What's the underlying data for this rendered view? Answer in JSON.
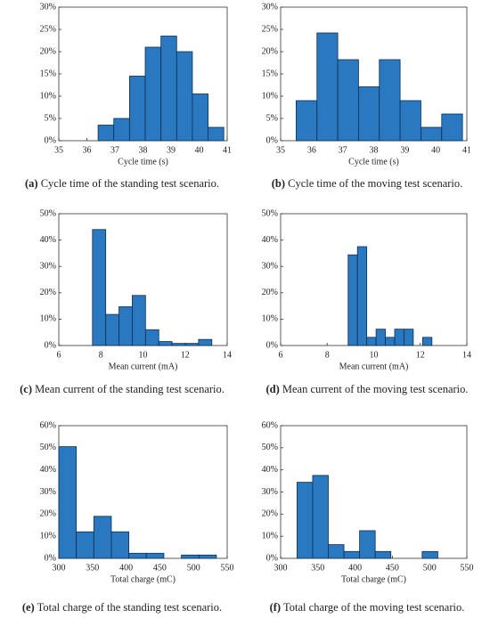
{
  "chart_data": [
    {
      "type": "histogram",
      "caption_label": "(a)",
      "caption": "Cycle time of the standing test scenario.",
      "x_label": "Cycle time (s)",
      "bins": [
        36.4,
        36.96,
        37.52,
        38.08,
        38.64,
        39.2,
        39.76,
        40.32,
        40.88
      ],
      "counts": [
        3.5,
        5,
        14.5,
        21,
        23.5,
        20,
        10.5,
        3
      ],
      "xlim": [
        35,
        41
      ],
      "xticks": [
        35,
        36,
        37,
        38,
        39,
        40,
        41
      ],
      "ylim": [
        0,
        30
      ],
      "yticks": [
        {
          "value": 0,
          "label": "0%"
        },
        {
          "value": 5,
          "label": "5%"
        },
        {
          "value": 10,
          "label": "10%"
        },
        {
          "value": 15,
          "label": "15%"
        },
        {
          "value": 20,
          "label": "20%"
        },
        {
          "value": 25,
          "label": "25%"
        },
        {
          "value": 30,
          "label": "30%"
        }
      ],
      "color": "#2a78c0"
    },
    {
      "type": "histogram",
      "caption_label": "(b)",
      "caption": "Cycle time of the moving test scenario.",
      "x_label": "Cycle time (s)",
      "bins": [
        35.5,
        36.17,
        36.84,
        37.51,
        38.18,
        38.85,
        39.52,
        40.19,
        40.86
      ],
      "counts": [
        9,
        24.2,
        18.2,
        12.1,
        18.2,
        9,
        3,
        6
      ],
      "xlim": [
        35,
        41
      ],
      "xticks": [
        35,
        36,
        37,
        38,
        39,
        40,
        41
      ],
      "ylim": [
        0,
        30
      ],
      "yticks": [
        {
          "value": 0,
          "label": "0%"
        },
        {
          "value": 5,
          "label": "5%"
        },
        {
          "value": 10,
          "label": "10%"
        },
        {
          "value": 15,
          "label": "15%"
        },
        {
          "value": 20,
          "label": "20%"
        },
        {
          "value": 25,
          "label": "25%"
        },
        {
          "value": 30,
          "label": "30%"
        }
      ],
      "color": "#2a78c0"
    },
    {
      "type": "histogram",
      "caption_label": "(c)",
      "caption": "Mean current of the standing test scenario.",
      "x_label": "Mean current (mA)",
      "bins": [
        7.6,
        8.23,
        8.86,
        9.49,
        10.12,
        10.75,
        11.38,
        12.01,
        12.64,
        13.27
      ],
      "counts": [
        44,
        11.8,
        14.7,
        19,
        6,
        1.5,
        0.8,
        0.8,
        2.3
      ],
      "xlim": [
        6,
        14
      ],
      "xticks": [
        6,
        8,
        10,
        12,
        14
      ],
      "ylim": [
        0,
        50
      ],
      "yticks": [
        {
          "value": 0,
          "label": "0%"
        },
        {
          "value": 10,
          "label": "10%"
        },
        {
          "value": 20,
          "label": "20%"
        },
        {
          "value": 30,
          "label": "30%"
        },
        {
          "value": 40,
          "label": "40%"
        },
        {
          "value": 50,
          "label": "50%"
        }
      ],
      "color": "#2a78c0"
    },
    {
      "type": "histogram",
      "caption_label": "(d)",
      "caption": "Mean current of the moving test scenario.",
      "x_label": "Mean current (mA)",
      "bins": [
        8.9,
        9.3,
        9.7,
        10.1,
        10.5,
        10.9,
        11.3,
        11.7,
        12.1,
        12.5
      ],
      "counts": [
        34.4,
        37.5,
        3.1,
        6.2,
        3.1,
        6.2,
        6.2,
        0,
        3.1
      ],
      "xlim": [
        6,
        14
      ],
      "xticks": [
        6,
        8,
        10,
        12,
        14
      ],
      "ylim": [
        0,
        50
      ],
      "yticks": [
        {
          "value": 0,
          "label": "0%"
        },
        {
          "value": 10,
          "label": "10%"
        },
        {
          "value": 20,
          "label": "20%"
        },
        {
          "value": 30,
          "label": "30%"
        },
        {
          "value": 40,
          "label": "40%"
        },
        {
          "value": 50,
          "label": "50%"
        }
      ],
      "color": "#2a78c0"
    },
    {
      "type": "histogram",
      "caption_label": "(e)",
      "caption": "Total charge of the standing test scenario.",
      "x_label": "Total charge (mC)",
      "bins": [
        300,
        326,
        352,
        378,
        404,
        430,
        456,
        482,
        508,
        534
      ],
      "counts": [
        50.5,
        12,
        19,
        12,
        2.3,
        2.3,
        0,
        1.5,
        1.5
      ],
      "xlim": [
        300,
        550
      ],
      "xticks": [
        300,
        350,
        400,
        450,
        500,
        550
      ],
      "ylim": [
        0,
        60
      ],
      "yticks": [
        {
          "value": 0,
          "label": "0%"
        },
        {
          "value": 10,
          "label": "10%"
        },
        {
          "value": 20,
          "label": "20%"
        },
        {
          "value": 30,
          "label": "30%"
        },
        {
          "value": 40,
          "label": "40%"
        },
        {
          "value": 50,
          "label": "50%"
        },
        {
          "value": 60,
          "label": "60%"
        }
      ],
      "color": "#2a78c0"
    },
    {
      "type": "histogram",
      "caption_label": "(f)",
      "caption": "Total charge of the moving test scenario.",
      "x_label": "Total charge (mC)",
      "bins": [
        322,
        343,
        364,
        385,
        406,
        427,
        448,
        469,
        490,
        511
      ],
      "counts": [
        34.4,
        37.5,
        6.2,
        3.1,
        12.5,
        3.1,
        0,
        0,
        3.1
      ],
      "xlim": [
        300,
        550
      ],
      "xticks": [
        300,
        350,
        400,
        450,
        500,
        550
      ],
      "ylim": [
        0,
        60
      ],
      "yticks": [
        {
          "value": 0,
          "label": "0%"
        },
        {
          "value": 10,
          "label": "10%"
        },
        {
          "value": 20,
          "label": "20%"
        },
        {
          "value": 30,
          "label": "30%"
        },
        {
          "value": 40,
          "label": "40%"
        },
        {
          "value": 50,
          "label": "50%"
        },
        {
          "value": 60,
          "label": "60%"
        }
      ],
      "color": "#2a78c0"
    }
  ]
}
